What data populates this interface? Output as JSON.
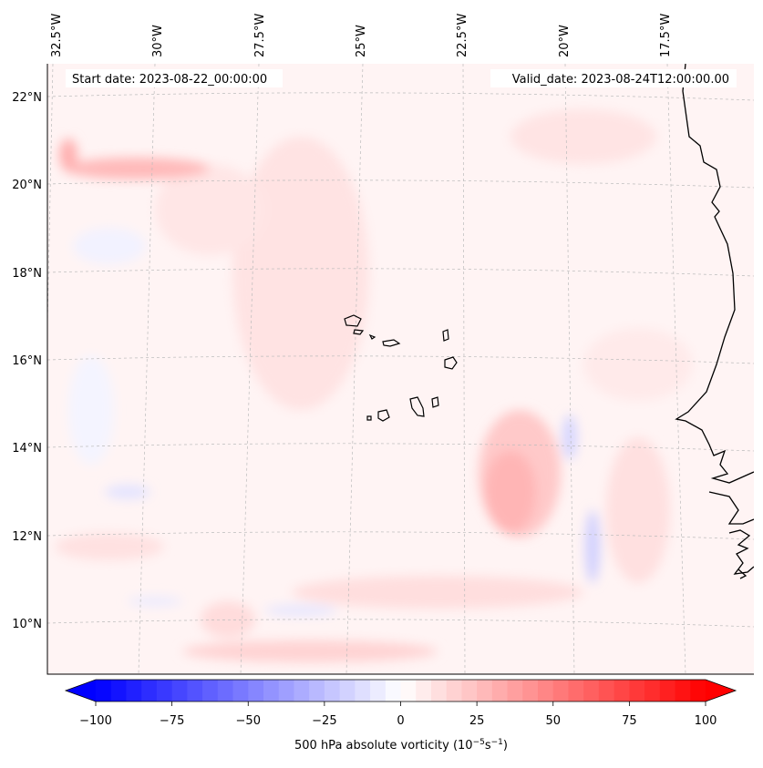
{
  "map": {
    "start_label": "Start date: 2023-08-22_00:00:00",
    "valid_label": "Valid_date: 2023-08-24T12:00:00.00",
    "lon_labels": [
      "32.5°W",
      "30°W",
      "27.5°W",
      "25°W",
      "22.5°W",
      "20°W",
      "17.5°W"
    ],
    "lat_labels": [
      "22°N",
      "20°N",
      "18°N",
      "16°N",
      "14°N",
      "12°N",
      "10°N"
    ],
    "field_name": "500 hPa absolute vorticity",
    "colors": {
      "background": "#fff4f4",
      "coastline": "#000000",
      "grid": "#bbbbbb",
      "min": "#0000ff",
      "mid": "#ffffff",
      "max": "#ff0000"
    }
  },
  "colorbar": {
    "min": -100,
    "max": 100,
    "tick_labels": [
      "−100",
      "−75",
      "−50",
      "−25",
      "0",
      "25",
      "50",
      "75",
      "100"
    ],
    "label_text": "500 hPa absolute vorticity (10",
    "label_exp1": "−5",
    "label_mid": "s",
    "label_exp2": "−1",
    "label_close": ")"
  }
}
